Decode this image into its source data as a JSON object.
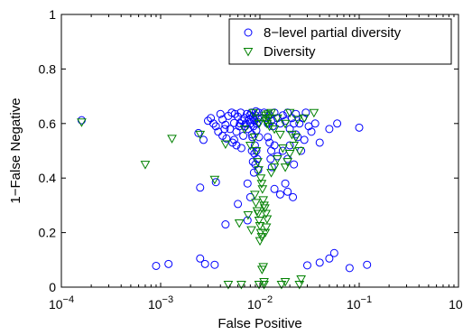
{
  "chart_data": {
    "type": "scatter",
    "title": "",
    "xlabel": "False Positive",
    "ylabel": "1−False Negative",
    "xscale": "log",
    "xlim": [
      0.0001,
      1
    ],
    "ylim": [
      0,
      1
    ],
    "xticks": [
      {
        "value": 0.0001,
        "base": "10",
        "exp": "−4"
      },
      {
        "value": 0.001,
        "base": "10",
        "exp": "−3"
      },
      {
        "value": 0.01,
        "base": "10",
        "exp": "−2"
      },
      {
        "value": 0.1,
        "base": "10",
        "exp": "−1"
      },
      {
        "value": 1,
        "base": "10",
        "exp": "0"
      }
    ],
    "yticks": [
      {
        "value": 0,
        "label": "0"
      },
      {
        "value": 0.2,
        "label": "0.2"
      },
      {
        "value": 0.4,
        "label": "0.4"
      },
      {
        "value": 0.6,
        "label": "0.6"
      },
      {
        "value": 0.8,
        "label": "0.8"
      },
      {
        "value": 1,
        "label": "1"
      }
    ],
    "grid": false,
    "legend_position": "top-right",
    "series": [
      {
        "name": "8−level partial diversity",
        "marker": "circle",
        "color": "#0000ff",
        "points": [
          [
            0.00016,
            0.612
          ],
          [
            0.0009,
            0.078
          ],
          [
            0.0012,
            0.085
          ],
          [
            0.0025,
            0.105
          ],
          [
            0.0028,
            0.085
          ],
          [
            0.0035,
            0.082
          ],
          [
            0.03,
            0.08
          ],
          [
            0.04,
            0.09
          ],
          [
            0.05,
            0.105
          ],
          [
            0.056,
            0.125
          ],
          [
            0.08,
            0.07
          ],
          [
            0.12,
            0.082
          ],
          [
            0.0024,
            0.565
          ],
          [
            0.0027,
            0.54
          ],
          [
            0.0025,
            0.365
          ],
          [
            0.0036,
            0.385
          ],
          [
            0.0045,
            0.23
          ],
          [
            0.006,
            0.305
          ],
          [
            0.0075,
            0.245
          ],
          [
            0.008,
            0.33
          ],
          [
            0.0075,
            0.38
          ],
          [
            0.0065,
            0.51
          ],
          [
            0.0055,
            0.54
          ],
          [
            0.0032,
            0.62
          ],
          [
            0.0036,
            0.59
          ],
          [
            0.004,
            0.635
          ],
          [
            0.0042,
            0.615
          ],
          [
            0.0045,
            0.595
          ],
          [
            0.0048,
            0.628
          ],
          [
            0.005,
            0.58
          ],
          [
            0.0052,
            0.64
          ],
          [
            0.0055,
            0.602
          ],
          [
            0.0058,
            0.57
          ],
          [
            0.006,
            0.625
          ],
          [
            0.0062,
            0.59
          ],
          [
            0.0064,
            0.64
          ],
          [
            0.0066,
            0.61
          ],
          [
            0.0068,
            0.555
          ],
          [
            0.007,
            0.62
          ],
          [
            0.0072,
            0.6
          ],
          [
            0.0074,
            0.635
          ],
          [
            0.0076,
            0.58
          ],
          [
            0.0078,
            0.615
          ],
          [
            0.008,
            0.6
          ],
          [
            0.0082,
            0.64
          ],
          [
            0.0083,
            0.56
          ],
          [
            0.0085,
            0.625
          ],
          [
            0.0086,
            0.59
          ],
          [
            0.0088,
            0.61
          ],
          [
            0.009,
            0.63
          ],
          [
            0.0092,
            0.575
          ],
          [
            0.0093,
            0.6
          ],
          [
            0.0095,
            0.62
          ],
          [
            0.0097,
            0.64
          ],
          [
            0.0098,
            0.55
          ],
          [
            0.0042,
            0.555
          ],
          [
            0.0046,
            0.545
          ],
          [
            0.0053,
            0.53
          ],
          [
            0.0058,
            0.52
          ],
          [
            0.0038,
            0.57
          ],
          [
            0.0044,
            0.58
          ],
          [
            0.0034,
            0.6
          ],
          [
            0.003,
            0.61
          ],
          [
            0.0056,
            0.635
          ],
          [
            0.0063,
            0.6
          ],
          [
            0.0071,
            0.59
          ],
          [
            0.0079,
            0.63
          ],
          [
            0.0087,
            0.615
          ],
          [
            0.0091,
            0.645
          ],
          [
            0.0096,
            0.605
          ],
          [
            0.0085,
            0.46
          ],
          [
            0.0088,
            0.49
          ],
          [
            0.009,
            0.45
          ],
          [
            0.0089,
            0.52
          ],
          [
            0.0087,
            0.42
          ],
          [
            0.0092,
            0.5
          ],
          [
            0.0094,
            0.47
          ],
          [
            0.0096,
            0.43
          ],
          [
            0.0084,
            0.55
          ],
          [
            0.0083,
            0.5
          ],
          [
            0.011,
            0.64
          ],
          [
            0.0115,
            0.62
          ],
          [
            0.012,
            0.6
          ],
          [
            0.0125,
            0.63
          ],
          [
            0.013,
            0.61
          ],
          [
            0.0135,
            0.59
          ],
          [
            0.014,
            0.64
          ],
          [
            0.015,
            0.62
          ],
          [
            0.016,
            0.6
          ],
          [
            0.017,
            0.63
          ],
          [
            0.018,
            0.61
          ],
          [
            0.019,
            0.64
          ],
          [
            0.02,
            0.58
          ],
          [
            0.021,
            0.62
          ],
          [
            0.022,
            0.6
          ],
          [
            0.023,
            0.635
          ],
          [
            0.025,
            0.6
          ],
          [
            0.027,
            0.62
          ],
          [
            0.029,
            0.64
          ],
          [
            0.031,
            0.59
          ],
          [
            0.033,
            0.57
          ],
          [
            0.036,
            0.6
          ],
          [
            0.04,
            0.53
          ],
          [
            0.05,
            0.58
          ],
          [
            0.06,
            0.6
          ],
          [
            0.1,
            0.585
          ],
          [
            0.012,
            0.55
          ],
          [
            0.0125,
            0.53
          ],
          [
            0.013,
            0.5
          ],
          [
            0.0128,
            0.47
          ],
          [
            0.0132,
            0.44
          ],
          [
            0.014,
            0.52
          ],
          [
            0.015,
            0.48
          ],
          [
            0.017,
            0.5
          ],
          [
            0.019,
            0.47
          ],
          [
            0.02,
            0.52
          ],
          [
            0.022,
            0.45
          ],
          [
            0.024,
            0.55
          ],
          [
            0.026,
            0.5
          ],
          [
            0.018,
            0.38
          ],
          [
            0.016,
            0.34
          ],
          [
            0.0215,
            0.33
          ],
          [
            0.019,
            0.35
          ],
          [
            0.014,
            0.36
          ],
          [
            0.023,
            0.56
          ],
          [
            0.028,
            0.54
          ]
        ]
      },
      {
        "name": "Diversity",
        "marker": "triangle-down",
        "color": "#008000",
        "points": [
          [
            0.00016,
            0.605
          ],
          [
            0.0007,
            0.45
          ],
          [
            0.0013,
            0.545
          ],
          [
            0.0025,
            0.56
          ],
          [
            0.0035,
            0.395
          ],
          [
            0.0045,
            0.525
          ],
          [
            0.0048,
            0.01
          ],
          [
            0.0062,
            0.235
          ],
          [
            0.007,
            0.58
          ],
          [
            0.0076,
            0.265
          ],
          [
            0.0082,
            0.21
          ],
          [
            0.0088,
            0.55
          ],
          [
            0.0092,
            0.5
          ],
          [
            0.0095,
            0.46
          ],
          [
            0.0097,
            0.43
          ],
          [
            0.0098,
            0.6
          ],
          [
            0.0099,
            0.62
          ],
          [
            0.0086,
            0.64
          ],
          [
            0.008,
            0.52
          ],
          [
            0.0089,
            0.34
          ],
          [
            0.0091,
            0.31
          ],
          [
            0.0094,
            0.28
          ],
          [
            0.0096,
            0.27
          ],
          [
            0.0098,
            0.245
          ],
          [
            0.01,
            0.225
          ],
          [
            0.0102,
            0.2
          ],
          [
            0.0104,
            0.185
          ],
          [
            0.01,
            0.17
          ],
          [
            0.0105,
            0.065
          ],
          [
            0.0108,
            0.075
          ],
          [
            0.011,
            0.02
          ],
          [
            0.011,
            0.01
          ],
          [
            0.0098,
            0.01
          ],
          [
            0.0065,
            0.01
          ],
          [
            0.0165,
            0.01
          ],
          [
            0.018,
            0.02
          ],
          [
            0.0102,
            0.4
          ],
          [
            0.0104,
            0.38
          ],
          [
            0.0106,
            0.36
          ],
          [
            0.0108,
            0.32
          ],
          [
            0.011,
            0.3
          ],
          [
            0.0112,
            0.29
          ],
          [
            0.0115,
            0.27
          ],
          [
            0.0118,
            0.25
          ],
          [
            0.0116,
            0.22
          ],
          [
            0.0113,
            0.2
          ],
          [
            0.0114,
            0.63
          ],
          [
            0.0116,
            0.61
          ],
          [
            0.0118,
            0.6
          ],
          [
            0.012,
            0.635
          ],
          [
            0.0122,
            0.62
          ],
          [
            0.0125,
            0.59
          ],
          [
            0.013,
            0.64
          ],
          [
            0.014,
            0.58
          ],
          [
            0.015,
            0.62
          ],
          [
            0.016,
            0.56
          ],
          [
            0.018,
            0.6
          ],
          [
            0.02,
            0.64
          ],
          [
            0.022,
            0.52
          ],
          [
            0.025,
            0.5
          ],
          [
            0.028,
            0.62
          ],
          [
            0.023,
            0.55
          ],
          [
            0.02,
            0.49
          ],
          [
            0.019,
            0.46
          ],
          [
            0.017,
            0.51
          ],
          [
            0.015,
            0.47
          ],
          [
            0.014,
            0.44
          ],
          [
            0.013,
            0.42
          ],
          [
            0.025,
            0.01
          ],
          [
            0.026,
            0.03
          ],
          [
            0.035,
            0.64
          ],
          [
            0.024,
            0.615
          ],
          [
            0.021,
            0.56
          ],
          [
            0.018,
            0.44
          ]
        ]
      }
    ]
  }
}
